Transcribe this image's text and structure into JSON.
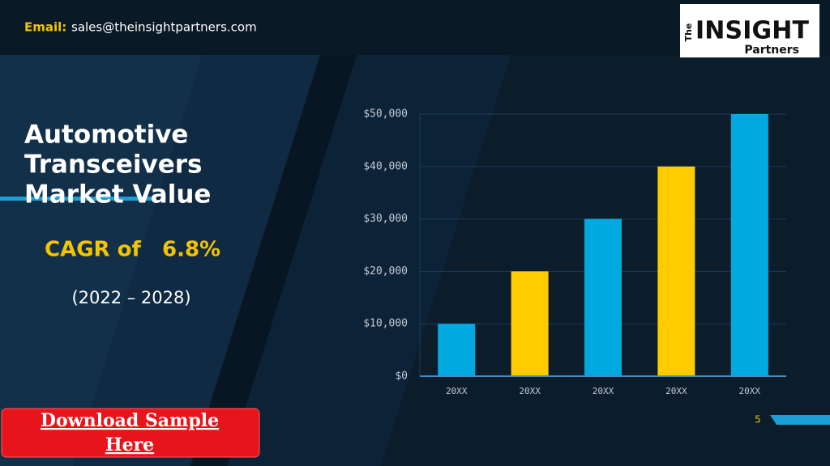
{
  "header": {
    "email_label": "Email:",
    "email": "sales@theinsightpartners.com",
    "logo": {
      "the": "The",
      "insight": "INSIGHT",
      "partners": "Partners"
    }
  },
  "slide": {
    "title_lines": [
      "Automotive",
      "Transceivers",
      "Market Value"
    ],
    "cagr_label": "CAGR of",
    "cagr_value": "6.8%",
    "period": "(2022 – 2028)",
    "button": [
      "Download Sample",
      "Here"
    ],
    "page_number": "5"
  },
  "chart_data": {
    "type": "bar",
    "categories": [
      "20XX",
      "20XX",
      "20XX",
      "20XX",
      "20XX"
    ],
    "values": [
      10000,
      20000,
      30000,
      40000,
      50000
    ],
    "colors": [
      "#00a9e0",
      "#ffcc00",
      "#00a9e0",
      "#ffcc00",
      "#00a9e0"
    ],
    "ylim": [
      0,
      50000
    ],
    "yticks": [
      {
        "value": 0,
        "label": "$0"
      },
      {
        "value": 10000,
        "label": "$10,000"
      },
      {
        "value": 20000,
        "label": "$20,000"
      },
      {
        "value": 30000,
        "label": "$30,000"
      },
      {
        "value": 40000,
        "label": "$40,000"
      },
      {
        "value": 50000,
        "label": "$50,000"
      }
    ],
    "grid": true
  }
}
